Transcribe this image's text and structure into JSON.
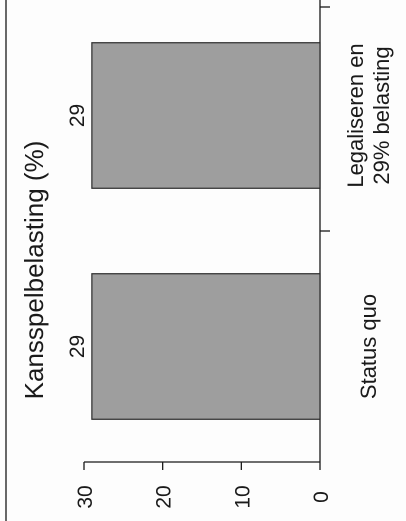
{
  "chart_data": {
    "type": "bar",
    "orientation": "vertical (figure rotated 90° counter-clockwise)",
    "title": "Kansspelbelasting (%)",
    "ylabel": "",
    "xlabel": "",
    "categories": [
      "Status quo",
      "Legaliseren en 29% belasting"
    ],
    "category_lines": [
      [
        "Status quo"
      ],
      [
        "Legaliseren en",
        "29% belasting"
      ]
    ],
    "values": [
      29,
      29
    ],
    "data_labels": [
      "29",
      "29"
    ],
    "ylim": [
      0,
      30
    ],
    "yticks": [
      0,
      10,
      20,
      30
    ],
    "ytick_labels": [
      "0",
      "10",
      "20",
      "30"
    ],
    "bar_color": "#9e9e9e",
    "grid": false,
    "legend": "none"
  }
}
